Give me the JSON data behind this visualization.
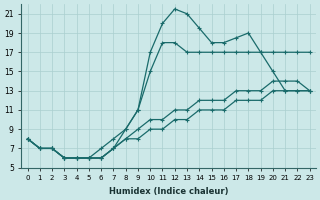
{
  "xlabel": "Humidex (Indice chaleur)",
  "xlim": [
    -0.5,
    23.5
  ],
  "ylim": [
    5,
    22
  ],
  "xticks": [
    0,
    1,
    2,
    3,
    4,
    5,
    6,
    7,
    8,
    9,
    10,
    11,
    12,
    13,
    14,
    15,
    16,
    17,
    18,
    19,
    20,
    21,
    22,
    23
  ],
  "yticks": [
    5,
    7,
    9,
    11,
    13,
    15,
    17,
    19,
    21
  ],
  "background_color": "#cce8e8",
  "grid_color": "#aacfcf",
  "line_color": "#1a6b6b",
  "lines": [
    {
      "x": [
        0,
        1,
        2,
        3,
        4,
        5,
        6,
        7,
        8,
        9,
        10,
        11,
        12,
        13,
        14,
        15,
        16,
        17,
        18,
        19,
        20,
        21,
        22,
        23
      ],
      "y": [
        8,
        7,
        7,
        6,
        6,
        6,
        6,
        7,
        8,
        8,
        9,
        9,
        10,
        10,
        11,
        11,
        11,
        12,
        12,
        12,
        13,
        13,
        13,
        13
      ]
    },
    {
      "x": [
        0,
        1,
        2,
        3,
        4,
        5,
        6,
        7,
        8,
        9,
        10,
        11,
        12,
        13,
        14,
        15,
        16,
        17,
        18,
        19,
        20,
        21,
        22,
        23
      ],
      "y": [
        8,
        7,
        7,
        6,
        6,
        6,
        6,
        7,
        8,
        9,
        10,
        10,
        11,
        11,
        12,
        12,
        12,
        13,
        13,
        13,
        14,
        14,
        14,
        13
      ]
    },
    {
      "x": [
        0,
        1,
        2,
        3,
        4,
        5,
        6,
        7,
        8,
        9,
        10,
        11,
        12,
        13,
        14,
        15,
        16,
        17,
        18,
        19,
        20,
        21,
        22,
        23
      ],
      "y": [
        8,
        7,
        7,
        6,
        6,
        6,
        6,
        7,
        9,
        11,
        15,
        18,
        18,
        17,
        17,
        17,
        17,
        17,
        17,
        17,
        15,
        13,
        13,
        13
      ]
    },
    {
      "x": [
        0,
        1,
        2,
        3,
        4,
        5,
        6,
        7,
        8,
        9,
        10,
        11,
        12,
        13,
        14,
        15,
        16,
        17,
        18,
        19,
        20,
        21,
        22,
        23
      ],
      "y": [
        8,
        7,
        7,
        6,
        6,
        6,
        7,
        8,
        9,
        11,
        17,
        20,
        21.5,
        21,
        19.5,
        18,
        18,
        18.5,
        19,
        17,
        17,
        17,
        17,
        17
      ]
    }
  ]
}
